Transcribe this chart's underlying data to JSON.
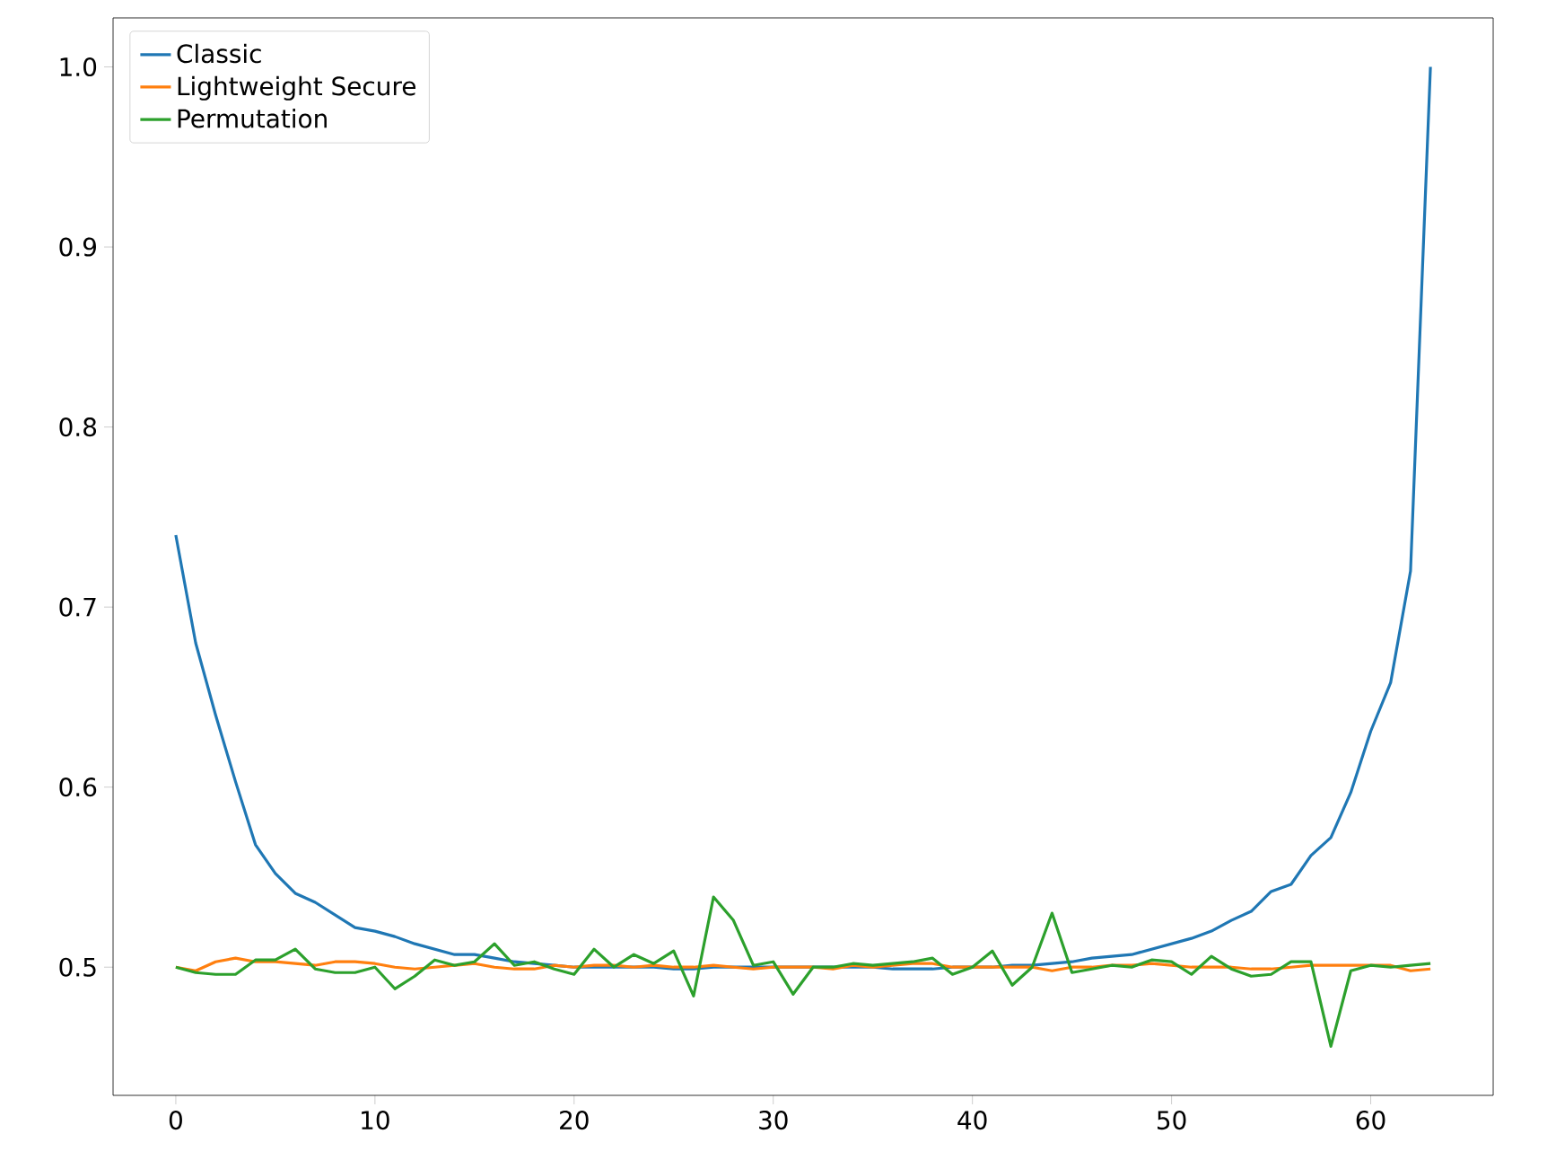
{
  "chart_data": {
    "type": "line",
    "x": [
      0,
      1,
      2,
      3,
      4,
      5,
      6,
      7,
      8,
      9,
      10,
      11,
      12,
      13,
      14,
      15,
      16,
      17,
      18,
      19,
      20,
      21,
      22,
      23,
      24,
      25,
      26,
      27,
      28,
      29,
      30,
      31,
      32,
      33,
      34,
      35,
      36,
      37,
      38,
      39,
      40,
      41,
      42,
      43,
      44,
      45,
      46,
      47,
      48,
      49,
      50,
      51,
      52,
      53,
      54,
      55,
      56,
      57,
      58,
      59,
      60,
      61,
      62,
      63
    ],
    "xlim": [
      -3.15,
      66.15
    ],
    "ylim": [
      0.4288,
      1.0272
    ],
    "xticks": [
      0,
      10,
      20,
      30,
      40,
      50,
      60
    ],
    "yticks": [
      {
        "value": 0.5,
        "label": "0.5"
      },
      {
        "value": 0.6,
        "label": "0.6"
      },
      {
        "value": 0.7,
        "label": "0.7"
      },
      {
        "value": 0.8,
        "label": "0.8"
      },
      {
        "value": 0.9,
        "label": "0.9"
      },
      {
        "value": 1.0,
        "label": "1.0"
      }
    ],
    "legend": "top left",
    "grid": false,
    "marker": "none",
    "line_style": "solid",
    "series": [
      {
        "name": "Classic",
        "color": "#1f77b4",
        "values": [
          0.74,
          0.68,
          0.64,
          0.603,
          0.568,
          0.552,
          0.541,
          0.536,
          0.529,
          0.522,
          0.52,
          0.517,
          0.513,
          0.51,
          0.507,
          0.507,
          0.505,
          0.503,
          0.502,
          0.501,
          0.5,
          0.5,
          0.5,
          0.5,
          0.5,
          0.499,
          0.499,
          0.5,
          0.5,
          0.5,
          0.5,
          null,
          0.5,
          0.5,
          0.5,
          0.5,
          0.499,
          0.499,
          0.499,
          0.5,
          0.5,
          0.5,
          0.501,
          0.501,
          0.502,
          0.503,
          0.505,
          0.506,
          0.507,
          0.51,
          0.513,
          0.516,
          0.52,
          0.526,
          0.531,
          0.542,
          0.546,
          0.562,
          0.572,
          0.597,
          0.631,
          0.658,
          0.72,
          1.0
        ]
      },
      {
        "name": "Lightweight Secure",
        "color": "#ff7f0e",
        "values": [
          0.5,
          0.498,
          0.503,
          0.505,
          0.503,
          0.503,
          0.502,
          0.501,
          0.503,
          0.503,
          0.502,
          0.5,
          0.499,
          0.5,
          0.501,
          0.502,
          0.5,
          0.499,
          0.499,
          0.501,
          0.5,
          0.501,
          0.501,
          0.5,
          0.501,
          0.5,
          0.5,
          0.501,
          0.5,
          0.499,
          0.5,
          0.5,
          0.5,
          0.499,
          0.501,
          0.5,
          0.501,
          0.502,
          0.502,
          0.5,
          0.5,
          0.5,
          0.5,
          0.5,
          0.498,
          0.5,
          0.5,
          0.501,
          0.501,
          0.502,
          0.501,
          0.5,
          0.5,
          0.5,
          0.499,
          0.499,
          0.5,
          0.501,
          0.501,
          0.501,
          0.501,
          0.501,
          0.498,
          0.499
        ]
      },
      {
        "name": "Permutation",
        "color": "#2ca02c",
        "values": [
          0.5,
          0.497,
          0.496,
          0.496,
          0.504,
          0.504,
          0.51,
          0.499,
          0.497,
          0.497,
          0.5,
          0.488,
          0.495,
          0.504,
          0.501,
          0.503,
          0.513,
          0.501,
          0.503,
          0.499,
          0.496,
          0.51,
          0.5,
          0.507,
          0.502,
          0.509,
          0.484,
          0.539,
          0.526,
          0.501,
          0.503,
          0.485,
          0.5,
          0.5,
          0.502,
          0.501,
          0.502,
          0.503,
          0.505,
          0.496,
          0.5,
          0.509,
          0.49,
          0.5,
          0.53,
          0.497,
          0.499,
          0.501,
          0.5,
          0.504,
          0.503,
          0.496,
          0.506,
          0.499,
          0.495,
          0.496,
          0.503,
          0.503,
          0.456,
          0.498,
          0.501,
          0.5,
          0.501,
          0.502
        ]
      }
    ]
  }
}
